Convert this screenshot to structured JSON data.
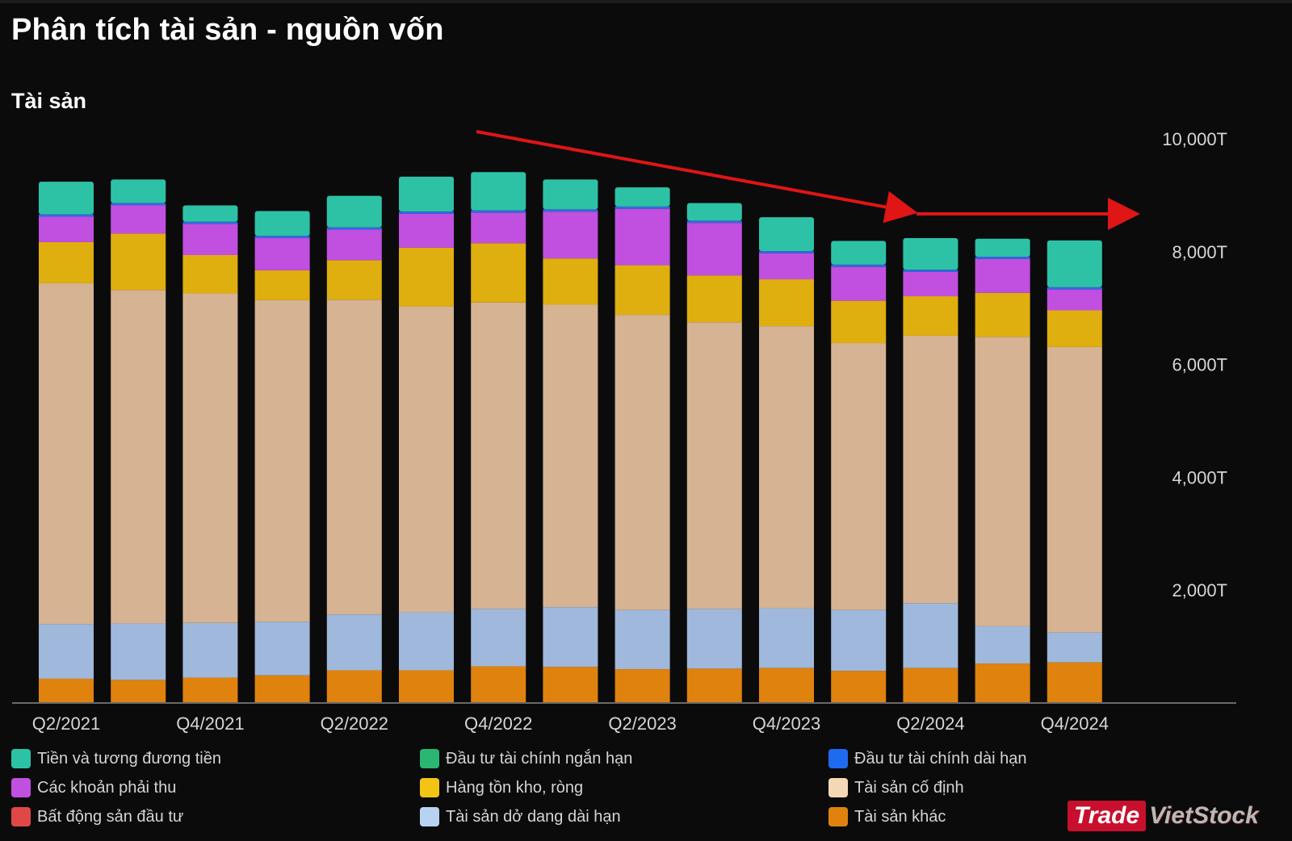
{
  "page": {
    "title": "Phân tích tài sản - nguồn vốn",
    "section_title": "Tài sản"
  },
  "chart_data": {
    "type": "bar",
    "stacked": true,
    "title": "Tài sản",
    "ylim": [
      0,
      10000
    ],
    "yticks": [
      2000,
      4000,
      6000,
      8000,
      10000
    ],
    "ytick_labels": [
      "2,000T",
      "4,000T",
      "6,000T",
      "8,000T",
      "10,000T"
    ],
    "categories": [
      "Q2/2021",
      "Q3/2021",
      "Q4/2021",
      "Q1/2022",
      "Q2/2022",
      "Q3/2022",
      "Q4/2022",
      "Q1/2023",
      "Q2/2023",
      "Q3/2023",
      "Q4/2023",
      "Q1/2024",
      "Q2/2024",
      "Q3/2024",
      "Q4/2024"
    ],
    "xtick_labels": [
      "Q2/2021",
      "Q4/2021",
      "Q2/2022",
      "Q4/2022",
      "Q2/2023",
      "Q4/2023",
      "Q2/2024",
      "Q4/2024"
    ],
    "series": [
      {
        "name": "Tài sản khác",
        "color": "#e0820e",
        "values": [
          430,
          410,
          450,
          490,
          580,
          580,
          650,
          640,
          600,
          610,
          620,
          570,
          620,
          700,
          720
        ]
      },
      {
        "name": "Tài sản dở dang dài hạn",
        "color": "#9fb8db",
        "values": [
          970,
          1000,
          970,
          950,
          990,
          1030,
          1020,
          1060,
          1050,
          1060,
          1060,
          1080,
          1150,
          660,
          530
        ]
      },
      {
        "name": "Tài sản cố định",
        "color": "#d6b392",
        "values": [
          6040,
          5910,
          5840,
          5700,
          5580,
          5420,
          5430,
          5360,
          5230,
          5080,
          5000,
          4730,
          4740,
          5130,
          5060
        ]
      },
      {
        "name": "Hàng tồn kho, ròng",
        "color": "#dfae0f",
        "values": [
          730,
          1000,
          680,
          530,
          700,
          1040,
          1050,
          820,
          880,
          830,
          830,
          750,
          700,
          780,
          650
        ]
      },
      {
        "name": "Các khoản phải thu",
        "color": "#c14fe0",
        "values": [
          450,
          500,
          550,
          570,
          540,
          600,
          540,
          830,
          1000,
          930,
          460,
          600,
          430,
          600,
          370
        ]
      },
      {
        "name": "Đầu tư tài chính dài hạn",
        "color": "#3468e0",
        "values": [
          40,
          40,
          40,
          40,
          40,
          40,
          40,
          40,
          40,
          40,
          40,
          40,
          40,
          40,
          40
        ]
      },
      {
        "name": "Tiền và tương đương tiền",
        "color": "#2dc2a6",
        "values": [
          580,
          420,
          290,
          440,
          560,
          620,
          680,
          530,
          340,
          310,
          600,
          420,
          560,
          320,
          830
        ]
      }
    ],
    "annotations": [
      {
        "type": "arrow",
        "description": "downward trend"
      },
      {
        "type": "arrow",
        "description": "flat trend"
      }
    ]
  },
  "legend": {
    "items": [
      {
        "label": "Tiền và tương đương tiền",
        "color": "#2dc2a6"
      },
      {
        "label": "Đầu tư tài chính ngắn hạn",
        "color": "#2bb673"
      },
      {
        "label": "Đầu tư tài chính dài hạn",
        "color": "#1e6bef"
      },
      {
        "label": "Các khoản phải thu",
        "color": "#c14fe0"
      },
      {
        "label": "Hàng tồn kho, ròng",
        "color": "#f2c414"
      },
      {
        "label": "Tài sản cố định",
        "color": "#f4d8b6"
      },
      {
        "label": "Bất động sản đầu tư",
        "color": "#e04848"
      },
      {
        "label": "Tài sản dở dang dài hạn",
        "color": "#b8d2f2"
      },
      {
        "label": "Tài sản khác",
        "color": "#e0820e"
      }
    ]
  },
  "watermark": {
    "part1": "Trade",
    "part2": "VietStock"
  }
}
